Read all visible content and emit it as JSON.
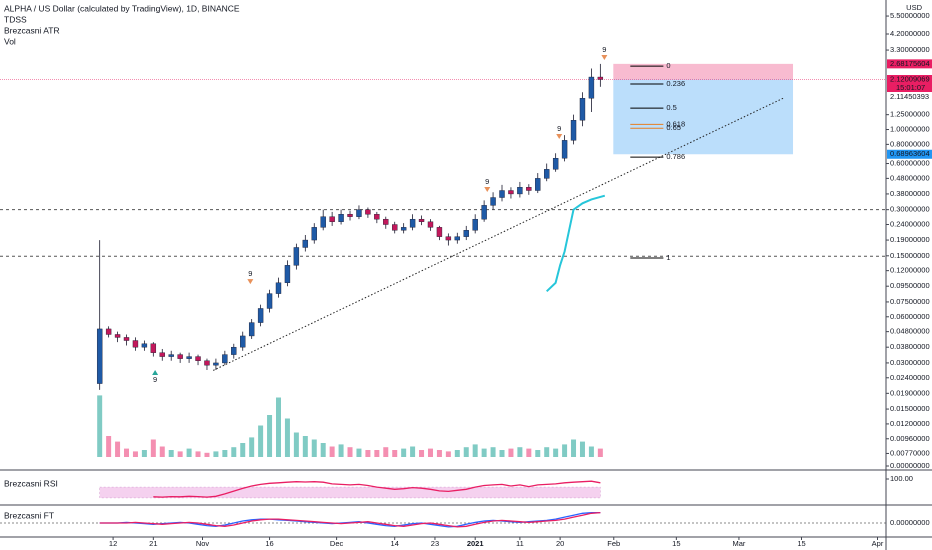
{
  "chart_data": {
    "type": "candlestick",
    "title": "ALPHA / US Dollar (calculated by TradingView), 1D, BINANCE",
    "indicators": [
      "TDSS",
      "Brezcasni ATR",
      "Vol"
    ],
    "y_unit": "USD",
    "log": true,
    "xlim": [
      -25.3,
      172.9
    ],
    "xticks": [
      {
        "value": 0,
        "label": "12"
      },
      {
        "value": 9,
        "label": "21"
      },
      {
        "value": 20,
        "label": "Nov"
      },
      {
        "value": 35,
        "label": "16"
      },
      {
        "value": 50,
        "label": "Dec"
      },
      {
        "value": 63,
        "label": "14"
      },
      {
        "value": 72,
        "label": "23"
      },
      {
        "value": 81,
        "label": "2021",
        "bold": true
      },
      {
        "value": 91,
        "label": "11"
      },
      {
        "value": 100,
        "label": "20"
      },
      {
        "value": 112,
        "label": "Feb"
      },
      {
        "value": 126,
        "label": "15"
      },
      {
        "value": 140,
        "label": "Mar"
      },
      {
        "value": 154,
        "label": "15"
      },
      {
        "value": 171,
        "label": "Apr"
      }
    ],
    "ylim": [
      0.0073,
      7.0
    ],
    "yticks": [
      {
        "value": 5.5,
        "label": "5.50000000"
      },
      {
        "value": 4.2,
        "label": "4.20000000"
      },
      {
        "value": 3.3,
        "label": "3.30000000"
      },
      {
        "value": 1.25,
        "label": "1.25000000"
      },
      {
        "value": 1.0,
        "label": "1.00000000"
      },
      {
        "value": 0.8,
        "label": "0.80000000"
      },
      {
        "value": 0.6,
        "label": "0.60000000"
      },
      {
        "value": 0.48,
        "label": "0.48000000"
      },
      {
        "value": 0.38,
        "label": "0.38000000"
      },
      {
        "value": 0.3,
        "label": "0.30000000"
      },
      {
        "value": 0.24,
        "label": "0.24000000"
      },
      {
        "value": 0.19,
        "label": "0.19000000"
      },
      {
        "value": 0.15,
        "label": "0.15000000"
      },
      {
        "value": 0.12,
        "label": "0.12000000"
      },
      {
        "value": 0.095,
        "label": "0.09500000"
      },
      {
        "value": 0.075,
        "label": "0.07500000"
      },
      {
        "value": 0.06,
        "label": "0.06000000"
      },
      {
        "value": 0.048,
        "label": "0.04800000"
      },
      {
        "value": 0.038,
        "label": "0.03800000"
      },
      {
        "value": 0.03,
        "label": "0.03000000"
      },
      {
        "value": 0.024,
        "label": "0.02400000"
      },
      {
        "value": 0.019,
        "label": "0.01900000"
      },
      {
        "value": 0.015,
        "label": "0.01500000"
      },
      {
        "value": 0.012,
        "label": "0.01200000"
      },
      {
        "value": 0.0096,
        "label": "0.00960000"
      },
      {
        "value": 0.0077,
        "label": "0.00770000"
      }
    ],
    "x": [
      -3,
      -1,
      1,
      3,
      5,
      7,
      9,
      11,
      13,
      15,
      17,
      19,
      21,
      23,
      25,
      27,
      29,
      31,
      33,
      35,
      37,
      39,
      41,
      43,
      45,
      47,
      49,
      51,
      53,
      55,
      57,
      59,
      61,
      63,
      65,
      67,
      69,
      71,
      73,
      75,
      77,
      79,
      81,
      83,
      85,
      87,
      89,
      91,
      93,
      95,
      97,
      99,
      101,
      103,
      105,
      107,
      109
    ],
    "candles": [
      [
        0.022,
        0.19,
        0.02,
        0.05
      ],
      [
        0.05,
        0.052,
        0.044,
        0.046
      ],
      [
        0.046,
        0.048,
        0.041,
        0.044
      ],
      [
        0.044,
        0.046,
        0.039,
        0.042
      ],
      [
        0.042,
        0.044,
        0.036,
        0.038
      ],
      [
        0.038,
        0.042,
        0.036,
        0.04
      ],
      [
        0.04,
        0.041,
        0.033,
        0.035
      ],
      [
        0.035,
        0.037,
        0.031,
        0.033
      ],
      [
        0.033,
        0.036,
        0.031,
        0.034
      ],
      [
        0.034,
        0.035,
        0.03,
        0.032
      ],
      [
        0.032,
        0.035,
        0.03,
        0.033
      ],
      [
        0.033,
        0.034,
        0.029,
        0.031
      ],
      [
        0.031,
        0.032,
        0.027,
        0.029
      ],
      [
        0.029,
        0.032,
        0.027,
        0.03
      ],
      [
        0.03,
        0.036,
        0.029,
        0.034
      ],
      [
        0.034,
        0.04,
        0.032,
        0.038
      ],
      [
        0.038,
        0.048,
        0.036,
        0.045
      ],
      [
        0.045,
        0.058,
        0.043,
        0.055
      ],
      [
        0.055,
        0.072,
        0.052,
        0.068
      ],
      [
        0.068,
        0.09,
        0.064,
        0.085
      ],
      [
        0.085,
        0.108,
        0.08,
        0.1
      ],
      [
        0.1,
        0.14,
        0.095,
        0.13
      ],
      [
        0.13,
        0.18,
        0.122,
        0.17
      ],
      [
        0.17,
        0.205,
        0.16,
        0.19
      ],
      [
        0.19,
        0.245,
        0.18,
        0.23
      ],
      [
        0.23,
        0.3,
        0.22,
        0.27
      ],
      [
        0.27,
        0.29,
        0.235,
        0.25
      ],
      [
        0.25,
        0.3,
        0.24,
        0.28
      ],
      [
        0.28,
        0.295,
        0.255,
        0.27
      ],
      [
        0.27,
        0.32,
        0.26,
        0.3
      ],
      [
        0.3,
        0.31,
        0.265,
        0.28
      ],
      [
        0.28,
        0.29,
        0.245,
        0.26
      ],
      [
        0.26,
        0.27,
        0.225,
        0.24
      ],
      [
        0.24,
        0.25,
        0.21,
        0.22
      ],
      [
        0.22,
        0.245,
        0.21,
        0.23
      ],
      [
        0.23,
        0.28,
        0.22,
        0.26
      ],
      [
        0.26,
        0.275,
        0.238,
        0.25
      ],
      [
        0.25,
        0.26,
        0.218,
        0.23
      ],
      [
        0.23,
        0.235,
        0.19,
        0.2
      ],
      [
        0.2,
        0.21,
        0.175,
        0.19
      ],
      [
        0.19,
        0.212,
        0.18,
        0.2
      ],
      [
        0.2,
        0.235,
        0.19,
        0.22
      ],
      [
        0.22,
        0.28,
        0.21,
        0.26
      ],
      [
        0.26,
        0.345,
        0.25,
        0.32
      ],
      [
        0.32,
        0.39,
        0.3,
        0.36
      ],
      [
        0.36,
        0.435,
        0.34,
        0.4
      ],
      [
        0.4,
        0.42,
        0.355,
        0.38
      ],
      [
        0.38,
        0.455,
        0.36,
        0.42
      ],
      [
        0.42,
        0.44,
        0.375,
        0.4
      ],
      [
        0.4,
        0.52,
        0.385,
        0.48
      ],
      [
        0.48,
        0.6,
        0.46,
        0.55
      ],
      [
        0.55,
        0.7,
        0.53,
        0.65
      ],
      [
        0.65,
        0.92,
        0.62,
        0.85
      ],
      [
        0.85,
        1.25,
        0.8,
        1.15
      ],
      [
        1.15,
        1.75,
        1.05,
        1.6
      ],
      [
        1.6,
        2.5,
        1.3,
        2.2
      ],
      [
        2.2,
        2.68,
        1.9,
        2.12
      ]
    ],
    "up_color": "#1f5aa6",
    "down_color": "#c2185b",
    "volume": {
      "values": [
        88,
        30,
        22,
        12,
        8,
        10,
        25,
        15,
        10,
        8,
        12,
        8,
        6,
        8,
        10,
        14,
        20,
        28,
        45,
        60,
        85,
        55,
        35,
        30,
        25,
        20,
        15,
        18,
        14,
        12,
        10,
        10,
        14,
        10,
        12,
        15,
        10,
        12,
        10,
        8,
        10,
        14,
        18,
        12,
        14,
        10,
        12,
        14,
        12,
        10,
        14,
        12,
        18,
        25,
        22,
        15,
        12
      ],
      "ylim": [
        0,
        100
      ],
      "yticks": [
        {
          "value": 0,
          "label": "0.00000000"
        }
      ],
      "up_color": "#80cbc4",
      "down_color": "#f48fb1"
    },
    "atr": {
      "color": "#26c6da",
      "x": [
        97,
        99,
        100,
        101,
        102,
        103,
        105,
        107,
        110
      ],
      "values": [
        0.088,
        0.1,
        0.13,
        0.16,
        0.22,
        0.3,
        0.33,
        0.35,
        0.37
      ]
    },
    "hlines": {
      "color": "#555555",
      "values": [
        0.3,
        0.149
      ]
    },
    "trendline": {
      "color": "#222222",
      "x": [
        22.4,
        149.9
      ],
      "values": [
        0.0268,
        1.6
      ]
    },
    "position": {
      "x": [
        111.9,
        152.1
      ],
      "target": 2.68175604,
      "entry": 2.12009069,
      "stop": 0.68963604,
      "time": "15:01:07",
      "target_color": "#f8bbd0",
      "stop_color": "#bbdefb",
      "entry_color": "#e91e63",
      "stop_badge_color": "#2196f3"
    },
    "price_label": 2.11450393,
    "fib": {
      "x": [
        115.7,
        123.1
      ],
      "levels": [
        {
          "label": "0",
          "value": 2.59,
          "color": "#000000"
        },
        {
          "label": "0.236",
          "value": 1.98,
          "color": "#000000"
        },
        {
          "label": "0.5",
          "value": 1.38,
          "color": "#000000"
        },
        {
          "label": "0.618",
          "value": 1.08,
          "color": "#e67e22"
        },
        {
          "label": "0.65",
          "value": 1.02,
          "color": "#e67e22"
        },
        {
          "label": "0.786",
          "value": 0.66,
          "color": "#000000"
        },
        {
          "label": "1",
          "value": 0.145,
          "color": "#000000"
        }
      ]
    },
    "td_marks": [
      {
        "label": "9",
        "x": 9.4,
        "value": 0.0262,
        "position": "below",
        "color": "#26a69a"
      },
      {
        "label": "9",
        "x": 30.7,
        "value": 0.101,
        "position": "above",
        "color": "#e8915a"
      },
      {
        "label": "9",
        "x": 83.7,
        "value": 0.403,
        "position": "above",
        "color": "#e8915a"
      },
      {
        "label": "9",
        "x": 99.8,
        "value": 0.894,
        "position": "above",
        "color": "#e8915a"
      },
      {
        "label": "9",
        "x": 109.9,
        "value": 2.93,
        "position": "above",
        "color": "#e8915a"
      }
    ],
    "rsi": {
      "title": "Brezcasni RSI",
      "color": "#e91e63",
      "band": [
        30,
        70
      ],
      "band_color": "#f3c6ec",
      "ylim": [
        0,
        100
      ],
      "yticks": [
        {
          "value": 100,
          "label": "100.00"
        }
      ],
      "values": [
        null,
        null,
        null,
        null,
        null,
        null,
        34,
        33,
        35,
        34,
        36,
        35,
        33,
        36,
        45,
        55,
        65,
        74,
        80,
        84,
        86,
        88,
        90,
        89,
        90,
        88,
        82,
        80,
        78,
        80,
        76,
        70,
        66,
        62,
        64,
        68,
        66,
        62,
        56,
        54,
        58,
        62,
        70,
        76,
        78,
        80,
        74,
        78,
        72,
        78,
        80,
        82,
        86,
        88,
        90,
        92,
        86
      ]
    },
    "ft": {
      "title": "Brezcasni FT",
      "ylim": [
        -2,
        2
      ],
      "yticks": [
        {
          "value": 0,
          "label": "0.00000000"
        }
      ],
      "series": [
        {
          "color": "#2962ff",
          "values": [
            0,
            0,
            0,
            0.1,
            0.0,
            -0.1,
            -0.2,
            -0.1,
            0.0,
            0.1,
            0.0,
            -0.2,
            -0.4,
            -0.5,
            -0.3,
            0.0,
            0.3,
            0.5,
            0.6,
            0.6,
            0.5,
            0.4,
            0.3,
            0.2,
            0.1,
            0.0,
            -0.1,
            0.0,
            0.1,
            0.2,
            0.0,
            -0.2,
            -0.4,
            -0.5,
            -0.3,
            -0.1,
            0.0,
            -0.2,
            -0.4,
            -0.6,
            -0.5,
            -0.2,
            0.1,
            0.3,
            0.4,
            0.3,
            0.2,
            0.1,
            0.2,
            0.3,
            0.4,
            0.6,
            0.9,
            1.2,
            1.5,
            1.6,
            1.6
          ]
        },
        {
          "color": "#e91e63",
          "values": [
            0,
            0,
            0,
            0,
            0.1,
            0.0,
            -0.1,
            -0.2,
            -0.1,
            0.0,
            0.1,
            0.0,
            -0.2,
            -0.4,
            -0.5,
            -0.3,
            0.0,
            0.3,
            0.5,
            0.6,
            0.6,
            0.5,
            0.4,
            0.3,
            0.2,
            0.1,
            0.0,
            -0.1,
            0.0,
            0.1,
            0.2,
            0.0,
            -0.2,
            -0.4,
            -0.5,
            -0.3,
            -0.1,
            0.0,
            -0.2,
            -0.4,
            -0.6,
            -0.5,
            -0.2,
            0.1,
            0.3,
            0.4,
            0.3,
            0.2,
            0.1,
            0.2,
            0.3,
            0.4,
            0.6,
            0.9,
            1.2,
            1.5,
            1.6
          ]
        }
      ]
    }
  }
}
